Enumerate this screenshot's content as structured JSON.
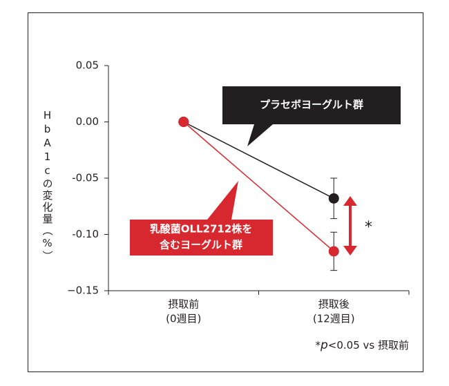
{
  "chart_data": {
    "type": "line",
    "y_label": "HbA1cの変化量（%）",
    "categories": [
      "摂取前",
      "摂取後"
    ],
    "category_sublabels": [
      "(0週目)",
      "(12週目)"
    ],
    "series": [
      {
        "name": "プラセボヨーグルト群",
        "color": "#231f20",
        "values": [
          0.0,
          -0.068
        ],
        "errors": [
          null,
          0.018
        ]
      },
      {
        "name": [
          "乳酸菌OLL2712株を",
          "含むヨーグルト群"
        ],
        "color": "#d7282f",
        "values": [
          0.0,
          -0.115
        ],
        "errors": [
          null,
          0.017
        ]
      }
    ],
    "ylim": [
      -0.15,
      0.05
    ],
    "yticks": [
      {
        "value": -0.15,
        "label": "−0.15"
      },
      {
        "value": -0.1,
        "label": "-0.10"
      },
      {
        "value": -0.05,
        "label": "-0.05"
      },
      {
        "value": 0,
        "label": "0.00"
      },
      0.05
    ],
    "significance": "*",
    "footnote": [
      "*",
      "p",
      "<0.05 vs 摂取前"
    ]
  }
}
